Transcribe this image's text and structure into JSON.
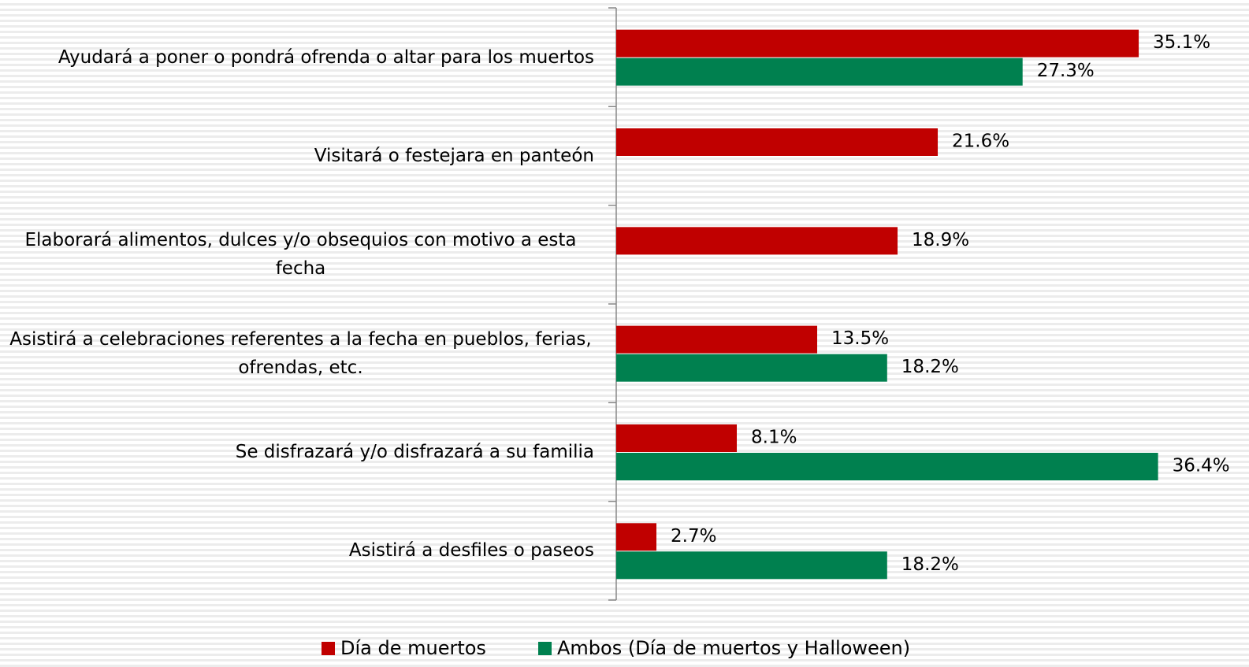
{
  "chart_data": {
    "type": "bar",
    "orientation": "horizontal",
    "categories": [
      "Ayudará a poner o pondrá ofrenda o altar para los muertos",
      "Visitará o festejara en panteón",
      "Elaborará alimentos, dulces y/o obsequios con motivo a esta fecha",
      "Asistirá a celebraciones referentes a la fecha en pueblos, ferias, ofrendas, etc.",
      "Se disfrazará y/o disfrazará a su familia",
      "Asistirá a desfiles o paseos"
    ],
    "series": [
      {
        "name": "Día de muertos",
        "color": "#c00000",
        "values": [
          35.1,
          21.6,
          18.9,
          13.5,
          8.1,
          2.7
        ],
        "value_labels": [
          "35.1%",
          "21.6%",
          "18.9%",
          "13.5%",
          "8.1%",
          "2.7%"
        ]
      },
      {
        "name": "Ambos (Día de muertos y Halloween)",
        "color": "#00804f",
        "values": [
          27.3,
          null,
          null,
          18.2,
          36.4,
          18.2
        ],
        "value_labels": [
          "27.3%",
          null,
          null,
          "18.2%",
          "36.4%",
          "18.2%"
        ]
      }
    ],
    "legend": "bottom"
  }
}
